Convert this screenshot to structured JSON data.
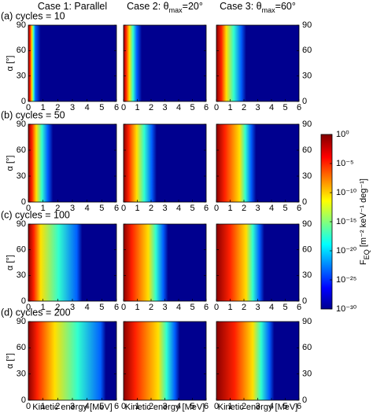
{
  "figure": {
    "column_titles": [
      {
        "text": "Case 1:  Parallel"
      },
      {
        "text": "Case 2:  θ",
        "sub": "max",
        "rest": "=20°"
      },
      {
        "text": "Case 3:  θ",
        "sub": "max",
        "rest": "=60°"
      }
    ],
    "row_titles": [
      "(a) cycles = 10",
      "(b) cycles = 50",
      "(c) cycles = 100",
      "(d) cycles = 200"
    ],
    "xlabel": "Kinetic energy [MeV]",
    "ylabel": "α [°]",
    "xlim": [
      0,
      6
    ],
    "xticks": [
      0,
      1,
      2,
      3,
      4,
      5,
      6
    ],
    "ylim": [
      0,
      90
    ],
    "yticks": [
      0,
      30,
      60,
      90
    ],
    "colorbar": {
      "label": {
        "text": "F",
        "sub": "EQ",
        "rest": " [m⁻² keV⁻¹ deg⁻¹]"
      },
      "lim": [
        -30,
        0
      ],
      "ticks": [
        {
          "value": 0,
          "label": "10⁰"
        },
        {
          "value": -5,
          "label": "10⁻⁵"
        },
        {
          "value": -10,
          "label": "10⁻¹⁰"
        },
        {
          "value": -15,
          "label": "10⁻¹⁵"
        },
        {
          "value": -20,
          "label": "10⁻²⁰"
        },
        {
          "value": -25,
          "label": "10⁻²⁵"
        },
        {
          "value": -30,
          "label": "10⁻³⁰"
        }
      ]
    }
  }
}
